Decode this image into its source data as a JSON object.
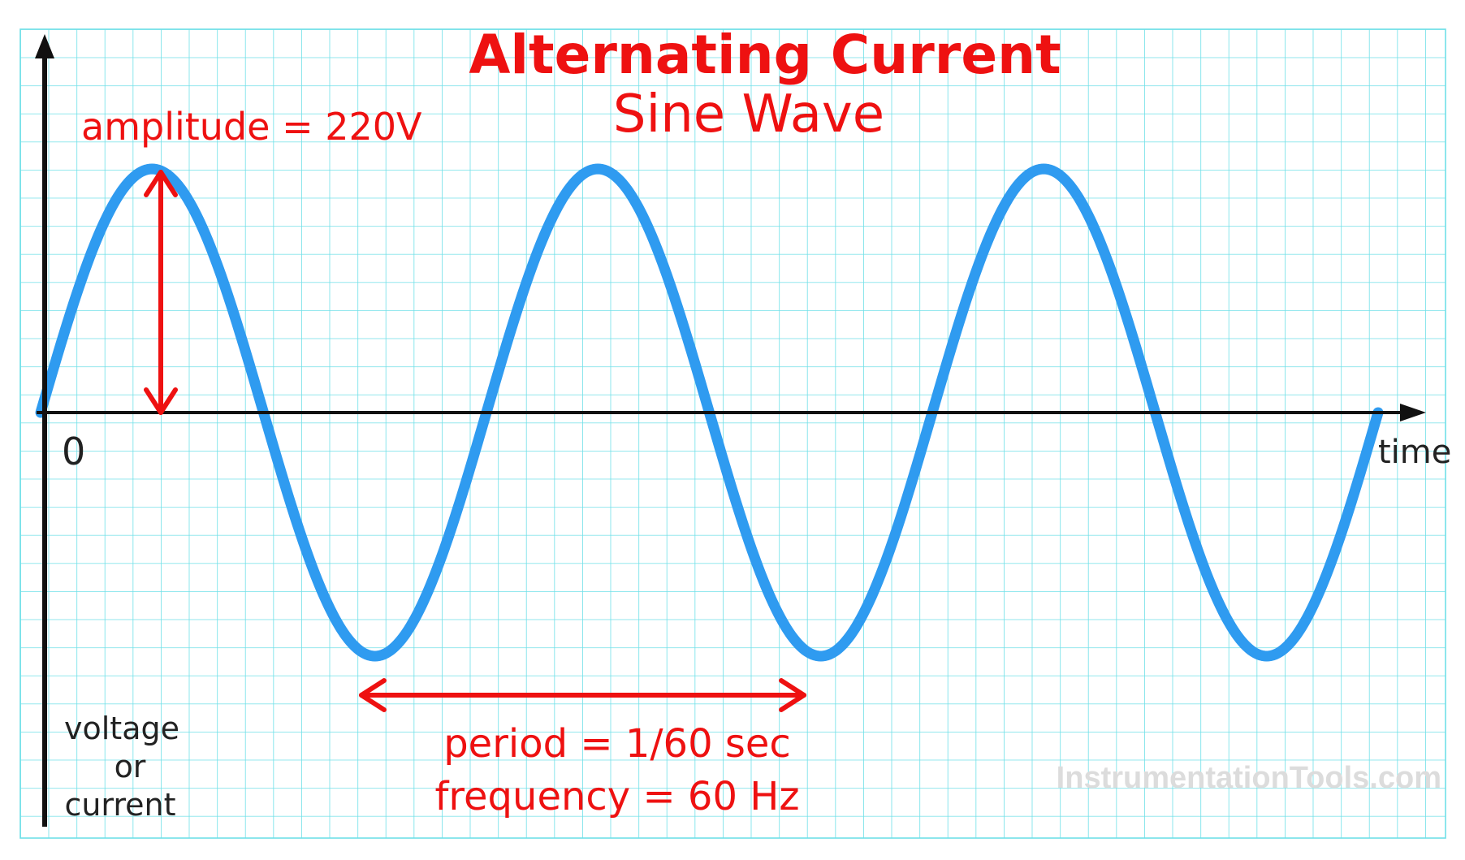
{
  "title": "Alternating Current",
  "subtitle": "Sine Wave",
  "origin_label": "0",
  "x_axis_label": "time",
  "y_axis_label": [
    "voltage",
    "or",
    "current"
  ],
  "amplitude_label": "amplitude = 220V",
  "period_label": "period = 1/60 sec",
  "frequency_label": "frequency = 60 Hz",
  "watermark": "InstrumentationTools.com",
  "wave": {
    "cycles": 3,
    "amplitude_volts": 220,
    "period_sec": "1/60",
    "frequency_hz": 60
  },
  "colors": {
    "grid": "#6fe0e8",
    "wave": "#2f9bf0",
    "annotation": "#ee1111",
    "axis": "#111111",
    "watermark": "#dcdcdc"
  }
}
